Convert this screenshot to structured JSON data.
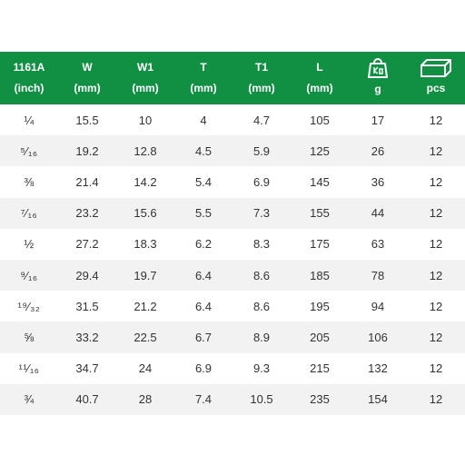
{
  "header": {
    "columns": [
      {
        "label": "1161A",
        "unit": "(inch)"
      },
      {
        "label": "W",
        "unit": "(mm)"
      },
      {
        "label": "W1",
        "unit": "(mm)"
      },
      {
        "label": "T",
        "unit": "(mm)"
      },
      {
        "label": "T1",
        "unit": "(mm)"
      },
      {
        "label": "L",
        "unit": "(mm)"
      },
      {
        "icon": "weight-icon",
        "unit": "g"
      },
      {
        "icon": "box-icon",
        "unit": "pcs"
      }
    ]
  },
  "rows": [
    [
      "¼",
      "15.5",
      "10",
      "4",
      "4.7",
      "105",
      "17",
      "12"
    ],
    [
      "⁵⁄₁₆",
      "19.2",
      "12.8",
      "4.5",
      "5.9",
      "125",
      "26",
      "12"
    ],
    [
      "⅜",
      "21.4",
      "14.2",
      "5.4",
      "6.9",
      "145",
      "36",
      "12"
    ],
    [
      "⁷⁄₁₆",
      "23.2",
      "15.6",
      "5.5",
      "7.3",
      "155",
      "44",
      "12"
    ],
    [
      "½",
      "27.2",
      "18.3",
      "6.2",
      "8.3",
      "175",
      "63",
      "12"
    ],
    [
      "⁹⁄₁₆",
      "29.4",
      "19.7",
      "6.4",
      "8.6",
      "185",
      "78",
      "12"
    ],
    [
      "¹⁹⁄₃₂",
      "31.5",
      "21.2",
      "6.4",
      "8.6",
      "195",
      "94",
      "12"
    ],
    [
      "⅝",
      "33.2",
      "22.5",
      "6.7",
      "8.9",
      "205",
      "106",
      "12"
    ],
    [
      "¹¹⁄₁₆",
      "34.7",
      "24",
      "6.9",
      "9.3",
      "215",
      "132",
      "12"
    ],
    [
      "¾",
      "40.7",
      "28",
      "7.4",
      "10.5",
      "235",
      "154",
      "12"
    ]
  ],
  "colors": {
    "header_bg": "#119044",
    "header_text": "#ffffff",
    "row_alt": "#f2f2f2"
  }
}
